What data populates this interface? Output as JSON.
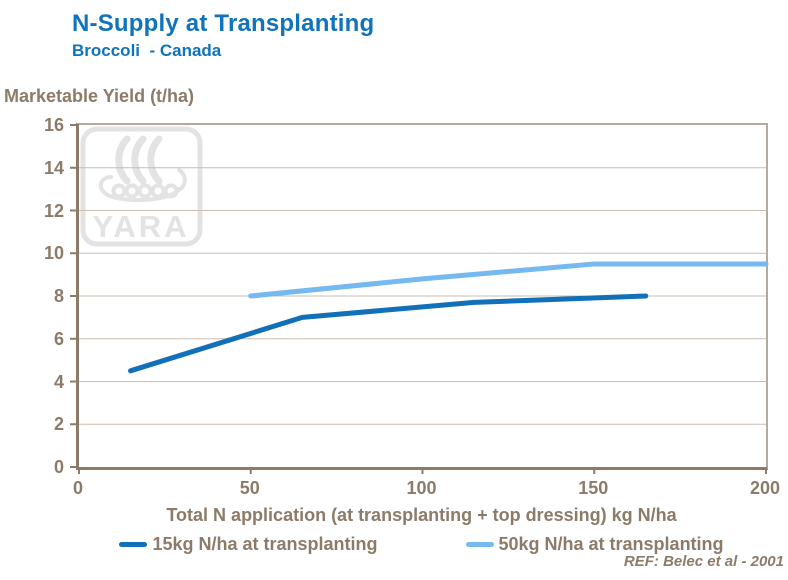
{
  "header": {
    "title": "N-Supply at Transplanting",
    "subtitle": "Broccoli  - Canada"
  },
  "chart_data": {
    "type": "line",
    "title": "N-Supply at Transplanting",
    "subtitle": "Broccoli - Canada",
    "ylabel": "Marketable Yield (t/ha)",
    "xlabel": "Total N application (at transplanting + top dressing) kg N/ha",
    "xlim": [
      0,
      200
    ],
    "ylim": [
      0,
      16
    ],
    "xticks": [
      0,
      50,
      100,
      150,
      200
    ],
    "yticks": [
      0,
      2,
      4,
      6,
      8,
      10,
      12,
      14,
      16
    ],
    "grid": "horizontal",
    "legend_position": "bottom",
    "series": [
      {
        "name": "15kg N/ha at transplanting",
        "color": "#1270b8",
        "x": [
          15,
          65,
          115,
          165
        ],
        "y": [
          4.5,
          7,
          7.7,
          8
        ]
      },
      {
        "name": "50kg N/ha at transplanting",
        "color": "#74b9f0",
        "x": [
          50,
          100,
          150,
          200
        ],
        "y": [
          8,
          8.8,
          9.5,
          9.5
        ]
      }
    ],
    "annotations": [
      "REF: Belec et al - 2001"
    ]
  },
  "watermark": {
    "text": "YARA"
  },
  "colors": {
    "title_blue": "#1173bb",
    "axis": "#8c7b69",
    "grid": "#c8beb3",
    "box_border": "#b3aaa2",
    "series1": "#1270b8",
    "series2": "#74b9f0",
    "watermark": "#e3e3e3"
  }
}
